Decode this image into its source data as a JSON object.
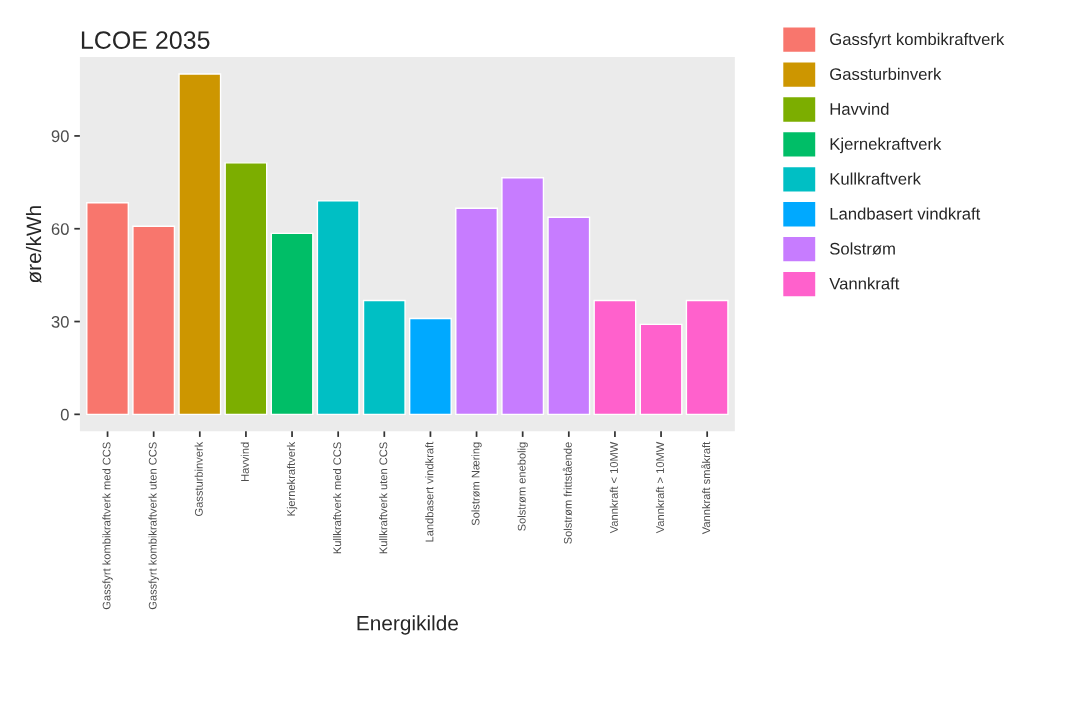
{
  "chart_data": {
    "type": "bar",
    "title": "LCOE 2035",
    "xlabel": "Energikilde",
    "ylabel": "øre/kWh",
    "categories": [
      "Gassfyrt kombikraftverk med CCS",
      "Gassfyrt kombikraftverk uten CCS",
      "Gassturbinverk",
      "Havvind",
      "Kjernekraftverk",
      "Kullkraftverk med CCS",
      "Kullkraftverk uten CCS",
      "Landbasert vindkraft",
      "Solstrøm Næring",
      "Solstrøm enebolig",
      "Solstrøm frittstående",
      "Vannkraft < 10MW",
      "Vannkraft > 10MW",
      "Vannkraft småkraft"
    ],
    "series": [
      {
        "name": "Gassfyrt kombikraftverk",
        "color": "#f8766d",
        "values": [
          68.4,
          60.8,
          null,
          null,
          null,
          null,
          null,
          null,
          null,
          null,
          null,
          null,
          null,
          null
        ]
      },
      {
        "name": "Gassturbinverk",
        "color": "#cd9600",
        "values": [
          null,
          null,
          110,
          null,
          null,
          null,
          null,
          null,
          null,
          null,
          null,
          null,
          null,
          null
        ]
      },
      {
        "name": "Havvind",
        "color": "#7cae00",
        "values": [
          null,
          null,
          null,
          81.3,
          null,
          null,
          null,
          null,
          null,
          null,
          null,
          null,
          null,
          null
        ]
      },
      {
        "name": "Kjernekraftverk",
        "color": "#00be67",
        "values": [
          null,
          null,
          null,
          null,
          58.5,
          null,
          null,
          null,
          null,
          null,
          null,
          null,
          null,
          null
        ]
      },
      {
        "name": "Kullkraftverk",
        "color": "#00bfc4",
        "values": [
          null,
          null,
          null,
          null,
          null,
          69,
          36.8,
          null,
          null,
          null,
          null,
          null,
          null,
          null
        ]
      },
      {
        "name": "Landbasert vindkraft",
        "color": "#00a9ff",
        "values": [
          null,
          null,
          null,
          null,
          null,
          null,
          null,
          31,
          null,
          null,
          null,
          null,
          null,
          null
        ]
      },
      {
        "name": "Solstrøm",
        "color": "#c77cff",
        "values": [
          null,
          null,
          null,
          null,
          null,
          null,
          null,
          null,
          66.6,
          76.5,
          63.7,
          null,
          null,
          null
        ]
      },
      {
        "name": "Vannkraft",
        "color": "#ff61cc",
        "values": [
          null,
          null,
          null,
          null,
          null,
          null,
          null,
          null,
          null,
          null,
          null,
          36.8,
          29.1,
          36.8
        ]
      }
    ],
    "ylim": [
      -5.5,
      115.5
    ],
    "yticks": [
      0,
      30,
      60,
      90
    ],
    "grid": false,
    "legend": "right"
  }
}
